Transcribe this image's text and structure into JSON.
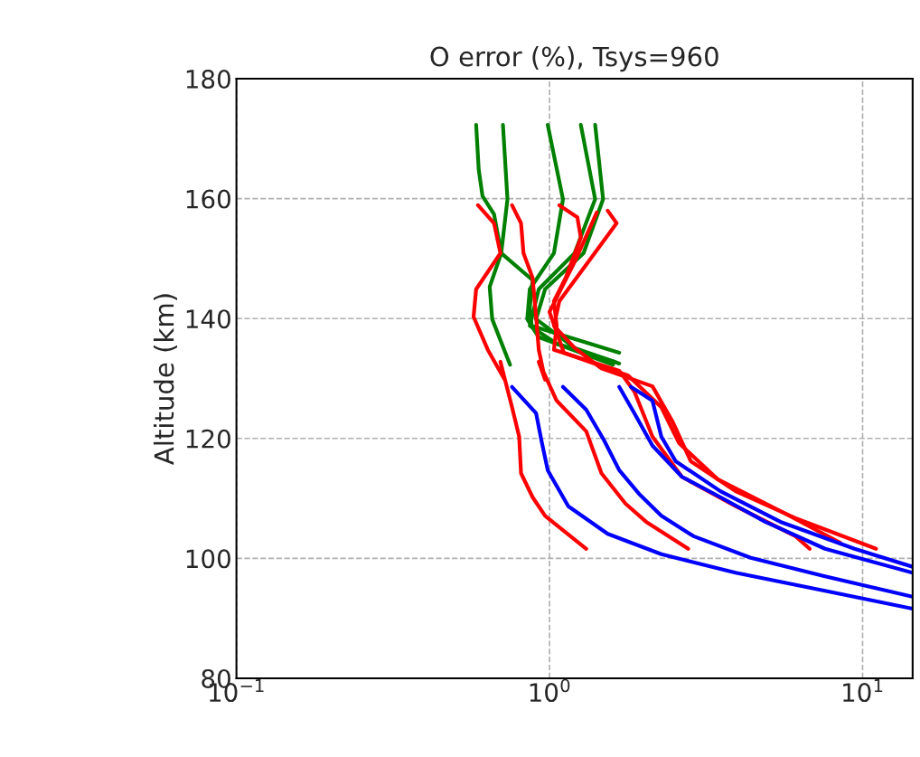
{
  "chart_data": {
    "type": "line",
    "title": "O error (%), Tsys=960",
    "ylabel": "Altitude (km)",
    "log": "x",
    "xlim": [
      0.1,
      14.45
    ],
    "xticks": [
      {
        "value": 0.1,
        "label": "10$^{−1}$"
      },
      {
        "value": 1,
        "label": "10$^{0}$"
      },
      {
        "value": 10,
        "label": "10$^{1}$"
      }
    ],
    "ylim": [
      80,
      180
    ],
    "yticks": [
      80,
      100,
      120,
      140,
      160,
      180
    ],
    "grid": true,
    "line_style": "solid",
    "marker": "none",
    "series": [
      {
        "color": "#008000",
        "x": [
          0.583,
          0.594,
          0.611,
          0.665,
          0.701,
          0.883,
          0.865,
          0.877,
          1.202,
          1.67
        ],
        "values": [
          172.3,
          164.9,
          160.4,
          157.4,
          150.9,
          146.4,
          141.8,
          138.8,
          136.6,
          134.3
        ]
      },
      {
        "color": "#008000",
        "x": [
          0.71,
          0.734,
          0.701,
          0.644,
          0.656,
          0.748
        ],
        "values": [
          172.3,
          159.9,
          150.9,
          145.3,
          139.9,
          132.3
        ]
      },
      {
        "color": "#008000",
        "x": [
          0.987,
          1.104,
          1.033,
          0.865,
          0.849,
          0.924,
          1.595
        ],
        "values": [
          172.3,
          159.9,
          150.9,
          144.9,
          139.9,
          136.9,
          132.3
        ]
      },
      {
        "color": "#008000",
        "x": [
          1.259,
          1.399,
          1.202,
          0.924,
          0.865,
          1.054,
          1.617
        ],
        "values": [
          172.3,
          159.9,
          150.9,
          144.9,
          138.8,
          135.8,
          132.8
        ]
      },
      {
        "color": "#008000",
        "x": [
          1.399,
          1.483,
          1.284,
          0.968,
          0.906,
          1.202,
          1.67
        ],
        "values": [
          172.3,
          159.9,
          150.9,
          144.9,
          139.9,
          135.1,
          132.5
        ]
      },
      {
        "color": "#ff0000",
        "x": [
          0.591,
          0.665,
          0.697,
          0.583,
          0.572,
          0.635,
          0.719,
          0.697,
          0.759,
          0.8,
          0.811,
          0.883,
          0.968,
          1.31
        ],
        "values": [
          158.9,
          155.9,
          150.9,
          144.9,
          140.3,
          134.8,
          129.8,
          132.8,
          125.2,
          120.3,
          114.2,
          110.2,
          107.1,
          101.6
        ]
      },
      {
        "color": "#ff0000",
        "x": [
          0.759,
          0.811,
          0.826,
          0.883,
          0.906,
          0.924,
          0.968,
          0.924,
          1.054,
          1.31,
          1.465,
          1.75,
          2.035,
          2.773
        ],
        "values": [
          158.9,
          155.9,
          150.9,
          146.8,
          140.3,
          134.8,
          129.8,
          132.8,
          126.3,
          121.2,
          114.2,
          109.1,
          106.1,
          101.6
        ]
      },
      {
        "color": "#ff0000",
        "x": [
          1.534,
          1.638,
          1.345,
          1.075,
          1.033,
          1.202,
          1.465,
          2.132,
          2.478,
          2.826,
          3.93,
          6.105,
          11.04
        ],
        "values": [
          158.0,
          155.9,
          149.8,
          142.9,
          138.8,
          135.1,
          131.7,
          128.7,
          122.7,
          116.2,
          111.2,
          106.7,
          101.6
        ]
      },
      {
        "color": "#ff0000",
        "x": [
          1.075,
          1.227,
          1.259,
          1.126,
          1.033,
          1.054,
          1.033,
          1.67,
          1.867,
          2.132,
          2.649,
          3.93,
          6.105,
          6.776
        ],
        "values": [
          158.9,
          156.9,
          153.5,
          146.8,
          142.9,
          138.8,
          134.8,
          131.3,
          127.8,
          120.3,
          113.6,
          108.7,
          103.7,
          101.6
        ]
      },
      {
        "color": "#ff0000",
        "x": [
          1.416,
          1.202,
          1.0,
          1.111,
          1.783,
          2.276,
          2.594,
          3.443,
          5.461,
          8.483
        ],
        "values": [
          157.7,
          149.4,
          141.1,
          134.3,
          130.5,
          125.2,
          119.2,
          113.2,
          107.9,
          102.6
        ]
      },
      {
        "color": "#0000ff",
        "x": [
          0.759,
          0.906,
          0.942,
          0.987,
          1.148,
          1.534,
          2.276,
          3.93,
          7.586,
          14.45
        ],
        "values": [
          128.6,
          124.2,
          119.7,
          114.7,
          108.7,
          104.1,
          100.7,
          97.6,
          94.6,
          91.6
        ]
      },
      {
        "color": "#0000ff",
        "x": [
          1.104,
          1.31,
          1.493,
          1.67,
          1.944,
          2.276,
          2.884,
          4.393,
          7.586,
          14.45
        ],
        "values": [
          128.6,
          124.8,
          119.7,
          114.7,
          110.6,
          107.1,
          103.7,
          100.1,
          97.0,
          93.6
        ]
      },
      {
        "color": "#0000ff",
        "x": [
          1.67,
          1.867,
          2.132,
          2.649,
          3.515,
          4.883,
          7.586,
          14.45
        ],
        "values": [
          128.6,
          124.2,
          118.8,
          113.6,
          110.2,
          106.1,
          101.6,
          97.6
        ]
      },
      {
        "color": "#0000ff",
        "x": [
          1.82,
          2.132,
          2.276,
          2.529,
          3.515,
          5.461,
          9.419,
          14.45
        ],
        "values": [
          128.6,
          126.3,
          120.3,
          116.2,
          111.2,
          106.1,
          101.6,
          98.6
        ]
      }
    ]
  }
}
